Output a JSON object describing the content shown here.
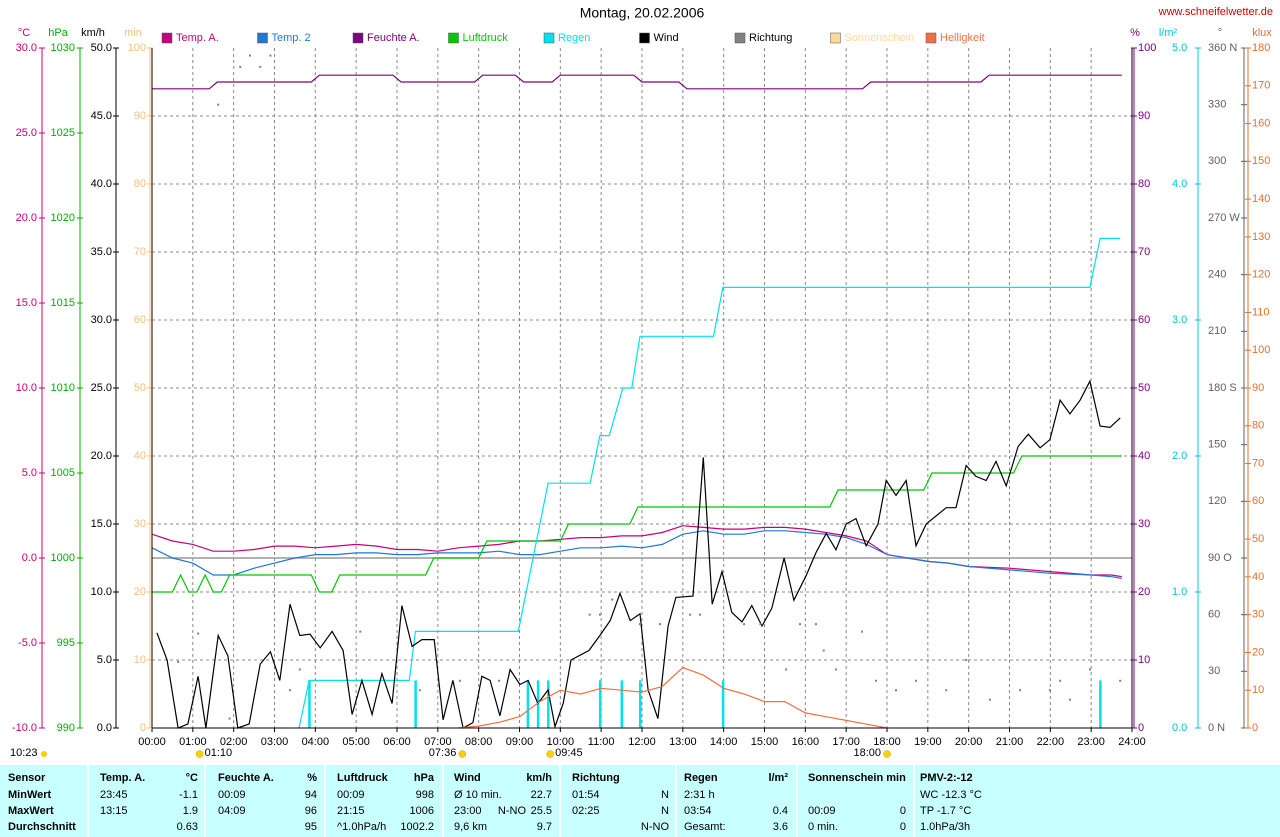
{
  "chart_data": {
    "type": "line",
    "title": "Montag, 20.02.2006",
    "source": "www.schneifelwetter.de",
    "xlim": [
      0,
      24
    ],
    "xticks": [
      {
        "value": 0,
        "label": "00:00"
      },
      {
        "value": 1,
        "label": "01:00"
      },
      {
        "value": 2,
        "label": "02:00"
      },
      {
        "value": 3,
        "label": "03:00"
      },
      {
        "value": 4,
        "label": "04:00"
      },
      {
        "value": 5,
        "label": "05:00"
      },
      {
        "value": 6,
        "label": "06:00"
      },
      {
        "value": 7,
        "label": "07:00"
      },
      {
        "value": 8,
        "label": "08:00"
      },
      {
        "value": 9,
        "label": "09:00"
      },
      {
        "value": 10,
        "label": "10:00"
      },
      {
        "value": 11,
        "label": "11:00"
      },
      {
        "value": 12,
        "label": "12:00"
      },
      {
        "value": 13,
        "label": "13:00"
      },
      {
        "value": 14,
        "label": "14:00"
      },
      {
        "value": 15,
        "label": "15:00"
      },
      {
        "value": 16,
        "label": "16:00"
      },
      {
        "value": 17,
        "label": "17:00"
      },
      {
        "value": 18,
        "label": "18:00"
      },
      {
        "value": 19,
        "label": "19:00"
      },
      {
        "value": 20,
        "label": "20:00"
      },
      {
        "value": 21,
        "label": "21:00"
      },
      {
        "value": 22,
        "label": "22:00"
      },
      {
        "value": 23,
        "label": "23:00"
      },
      {
        "value": 24,
        "label": "24:00"
      }
    ],
    "grid": true,
    "axes": [
      {
        "label": "°C",
        "color": "#c8007a",
        "lim": [
          -10,
          30
        ],
        "ticks": [
          {
            "value": -10,
            "label": "-10.0"
          },
          {
            "value": -5,
            "label": "-5.0"
          },
          {
            "value": 0,
            "label": "0.0"
          },
          {
            "value": 5,
            "label": "5.0"
          },
          {
            "value": 10,
            "label": "10.0"
          },
          {
            "value": 15,
            "label": "15.0"
          },
          {
            "value": 20,
            "label": "20.0"
          },
          {
            "value": 25,
            "label": "25.0"
          },
          {
            "value": 30,
            "label": "30.0"
          }
        ]
      },
      {
        "label": "hPa",
        "color": "#00b000",
        "lim": [
          990,
          1030
        ],
        "ticks": [
          990,
          995,
          1000,
          1005,
          1010,
          1015,
          1020,
          1025,
          1030
        ]
      },
      {
        "label": "km/h",
        "color": "#000000",
        "lim": [
          0,
          50
        ],
        "ticks": [
          {
            "value": 0,
            "label": "0.0"
          },
          {
            "value": 5,
            "label": "5.0"
          },
          {
            "value": 10,
            "label": "10.0"
          },
          {
            "value": 15,
            "label": "15.0"
          },
          {
            "value": 20,
            "label": "20.0"
          },
          {
            "value": 25,
            "label": "25.0"
          },
          {
            "value": 30,
            "label": "30.0"
          },
          {
            "value": 35,
            "label": "35.0"
          },
          {
            "value": 40,
            "label": "40.0"
          },
          {
            "value": 45,
            "label": "45.0"
          },
          {
            "value": 50,
            "label": "50.0"
          }
        ]
      },
      {
        "label": "min",
        "color": "#f0c080",
        "lim": [
          0,
          100
        ],
        "ticks": [
          0,
          10,
          20,
          30,
          40,
          50,
          60,
          70,
          80,
          90,
          100
        ]
      },
      {
        "label": "%",
        "color": "#800080",
        "lim": [
          0,
          100
        ],
        "ticks": [
          0,
          10,
          20,
          30,
          40,
          50,
          60,
          70,
          80,
          90,
          100
        ]
      },
      {
        "label": "l/m²",
        "color": "#00c8d8",
        "lim": [
          0,
          5
        ],
        "ticks": [
          {
            "value": 0,
            "label": "0.0"
          },
          {
            "value": 1,
            "label": "1.0"
          },
          {
            "value": 2,
            "label": "2.0"
          },
          {
            "value": 3,
            "label": "3.0"
          },
          {
            "value": 4,
            "label": "4.0"
          },
          {
            "value": 5,
            "label": "5.0"
          }
        ]
      },
      {
        "label": "°",
        "color": "#606060",
        "lim": [
          0,
          360
        ],
        "ticks": [
          {
            "value": 0,
            "label": "0 N"
          },
          30,
          60,
          {
            "value": 90,
            "label": "90 O"
          },
          120,
          150,
          {
            "value": 180,
            "label": "180 S"
          },
          210,
          240,
          {
            "value": 270,
            "label": "270 W"
          },
          300,
          330,
          {
            "value": 360,
            "label": "360 N"
          }
        ]
      },
      {
        "label": "klux",
        "color": "#e07030",
        "lim": [
          0,
          180
        ],
        "ticks": [
          0,
          10,
          20,
          30,
          40,
          50,
          60,
          70,
          80,
          90,
          100,
          110,
          120,
          130,
          140,
          150,
          160,
          170,
          180
        ]
      }
    ],
    "series": [
      {
        "name": "Temp. A.",
        "color": "#c8007a",
        "axis": 0,
        "style": "line",
        "x": [
          0,
          0.5,
          1,
          1.5,
          2,
          2.5,
          3,
          3.5,
          4,
          4.5,
          5,
          5.5,
          6,
          6.5,
          7,
          7.5,
          8,
          8.5,
          9,
          9.5,
          10,
          10.5,
          11,
          11.5,
          12,
          12.5,
          13,
          13.5,
          14,
          14.5,
          15,
          15.5,
          16,
          16.5,
          17,
          17.5,
          18,
          18.5,
          19,
          19.5,
          20,
          21,
          22,
          23,
          23.5,
          23.75
        ],
        "values": [
          1.4,
          1.0,
          0.8,
          0.4,
          0.4,
          0.5,
          0.7,
          0.7,
          0.6,
          0.7,
          0.8,
          0.7,
          0.5,
          0.5,
          0.4,
          0.6,
          0.7,
          0.8,
          1.0,
          1.0,
          1.1,
          1.2,
          1.2,
          1.3,
          1.3,
          1.5,
          1.9,
          1.8,
          1.7,
          1.7,
          1.8,
          1.8,
          1.7,
          1.5,
          1.3,
          1.0,
          0.2,
          0,
          -0.2,
          -0.3,
          -0.5,
          -0.6,
          -0.8,
          -1.0,
          -1.0,
          -1.1
        ]
      },
      {
        "name": "Temp. 2",
        "color": "#1e78d8",
        "axis": 0,
        "style": "line",
        "x": [
          0,
          0.5,
          1,
          1.5,
          2,
          2.5,
          3,
          3.5,
          4,
          4.5,
          5,
          5.5,
          6,
          6.5,
          7,
          7.5,
          8,
          8.5,
          9,
          9.5,
          10,
          10.5,
          11,
          11.5,
          12,
          12.5,
          13,
          13.5,
          14,
          14.5,
          15,
          15.5,
          16,
          16.5,
          17,
          17.5,
          18,
          18.5,
          19,
          19.5,
          20,
          21,
          22,
          23,
          23.5,
          23.75
        ],
        "values": [
          0.6,
          0.0,
          -0.3,
          -1.0,
          -1.0,
          -0.6,
          -0.3,
          0,
          0.2,
          0.2,
          0.3,
          0.3,
          0.2,
          0.2,
          0.3,
          0.3,
          0.3,
          0.4,
          0.2,
          0.2,
          0.4,
          0.6,
          0.6,
          0.7,
          0.6,
          0.8,
          1.4,
          1.6,
          1.4,
          1.4,
          1.6,
          1.6,
          1.5,
          1.4,
          1.2,
          0.8,
          0.2,
          0,
          -0.2,
          -0.3,
          -0.5,
          -0.7,
          -0.9,
          -1.0,
          -1.1,
          -1.2
        ]
      },
      {
        "name": "Feuchte A.",
        "color": "#800080",
        "axis": 4,
        "style": "line",
        "x": [
          0,
          1.4,
          1.6,
          3.9,
          4.1,
          5.9,
          6.1,
          7.9,
          8.1,
          8.9,
          9.1,
          9.8,
          10.0,
          11.8,
          12.0,
          12.9,
          13.1,
          17.4,
          17.6,
          20.3,
          20.5,
          23.75
        ],
        "values": [
          94,
          94,
          95,
          95,
          96,
          96,
          95,
          95,
          96,
          96,
          95,
          95,
          96,
          96,
          95,
          95,
          94,
          94,
          95,
          95,
          96,
          96
        ]
      },
      {
        "name": "Luftdruck",
        "color": "#00c800",
        "axis": 1,
        "style": "line",
        "x": [
          0,
          0.5,
          0.7,
          0.9,
          1.1,
          1.3,
          1.5,
          1.7,
          1.9,
          3.9,
          4.1,
          4.4,
          4.6,
          6.7,
          6.9,
          8.0,
          8.2,
          10.0,
          10.2,
          11.7,
          11.9,
          16.6,
          16.8,
          18.9,
          19.1,
          21.1,
          21.3,
          23.75
        ],
        "values": [
          998,
          998,
          999,
          998,
          998,
          999,
          998,
          998,
          999,
          999,
          998,
          998,
          999,
          999,
          1000,
          1000,
          1001,
          1001,
          1002,
          1002,
          1003,
          1003,
          1004,
          1004,
          1005,
          1005,
          1006,
          1006
        ]
      },
      {
        "name": "Regen",
        "color": "#00e0f0",
        "axis": 5,
        "style": "line",
        "x": [
          3.6,
          3.85,
          6.3,
          6.45,
          8.97,
          9.7,
          10.73,
          10.97,
          11.2,
          11.53,
          11.75,
          11.95,
          13.75,
          13.98,
          22.97,
          23.22,
          23.71
        ],
        "values": [
          0,
          0.35,
          0.35,
          0.71,
          0.71,
          1.8,
          1.8,
          2.15,
          2.15,
          2.5,
          2.5,
          2.88,
          2.88,
          3.24,
          3.24,
          3.6,
          3.6
        ],
        "bar_x": [
          3.85,
          6.45,
          9.2,
          9.45,
          9.7,
          10.97,
          11.5,
          11.95,
          13.98,
          23.22
        ],
        "bar_values": [
          0.35,
          0.35,
          0.35,
          0.35,
          0.35,
          0.35,
          0.35,
          0.35,
          0.35,
          0.35
        ]
      },
      {
        "name": "Wind",
        "color": "#000000",
        "axis": 2,
        "style": "line",
        "x": [
          0.12,
          0.37,
          0.64,
          0.88,
          1.13,
          1.32,
          1.62,
          1.86,
          2.1,
          2.38,
          2.65,
          2.9,
          3.13,
          3.38,
          3.62,
          3.87,
          4.12,
          4.41,
          4.68,
          4.9,
          5.14,
          5.39,
          5.63,
          5.88,
          6.12,
          6.37,
          6.61,
          6.91,
          7.13,
          7.37,
          7.62,
          7.86,
          8.08,
          8.28,
          8.52,
          8.77,
          9.01,
          9.21,
          9.45,
          9.7,
          9.87,
          10.07,
          10.26,
          10.7,
          10.97,
          11.22,
          11.46,
          11.71,
          11.95,
          12.15,
          12.39,
          12.64,
          12.83,
          13.25,
          13.5,
          13.72,
          13.96,
          14.2,
          14.45,
          14.69,
          14.94,
          15.18,
          15.48,
          15.72,
          16.02,
          16.26,
          16.51,
          16.75,
          17.0,
          17.24,
          17.49,
          17.78,
          17.98,
          18.22,
          18.47,
          18.71,
          18.96,
          19.45,
          19.69,
          19.94,
          20.18,
          20.43,
          20.67,
          20.92,
          21.21,
          21.46,
          21.75,
          21.99,
          22.24,
          22.48,
          22.73,
          22.97,
          23.22,
          23.46,
          23.71
        ],
        "values": [
          7.0,
          5.0,
          0,
          0.3,
          3.8,
          0,
          6.8,
          5.3,
          0,
          0.3,
          4.7,
          5.6,
          3.5,
          9.1,
          6.8,
          6.9,
          5.9,
          7.1,
          5.7,
          1.0,
          3.5,
          1.0,
          4.0,
          1.8,
          9.0,
          6.0,
          6.5,
          6.5,
          0.6,
          3.5,
          0,
          0.4,
          3.8,
          3.5,
          0.9,
          4.3,
          3.2,
          3.5,
          1.8,
          2.8,
          0.1,
          1.8,
          5.0,
          5.7,
          6.8,
          7.9,
          9.9,
          7.9,
          8.4,
          2.8,
          0.7,
          7.5,
          9.6,
          9.7,
          19.9,
          9.1,
          11.5,
          8.5,
          7.8,
          9.0,
          7.5,
          8.8,
          12.5,
          9.4,
          11.2,
          12.9,
          14.3,
          13.1,
          15.0,
          15.4,
          13.4,
          15.0,
          18.2,
          17.1,
          18.2,
          13.4,
          15.0,
          16.2,
          16.2,
          19.3,
          18.5,
          18.2,
          19.6,
          17.8,
          20.7,
          21.6,
          20.6,
          21.2,
          24.1,
          23.1,
          24.1,
          25.5,
          22.2,
          22.1,
          22.8
        ]
      },
      {
        "name": "Richtung",
        "color": "#808080",
        "axis": 6,
        "style": "dots",
        "x": [
          0.64,
          1.13,
          1.62,
          1.9,
          2.16,
          2.4,
          2.65,
          2.9,
          3.38,
          3.62,
          5.1,
          6.56,
          7.54,
          8.5,
          10.72,
          10.97,
          11.27,
          11.95,
          12.44,
          13.18,
          13.42,
          14.5,
          14.9,
          15.53,
          15.87,
          16.26,
          16.45,
          16.75,
          17.39,
          17.73,
          18.22,
          18.71,
          19.45,
          19.94,
          20.52,
          21.26,
          21.99,
          22.24,
          22.48,
          22.97,
          23.71
        ],
        "values": [
          35,
          50,
          330,
          5,
          350,
          356,
          350,
          356,
          20,
          31,
          51,
          20,
          25,
          25,
          60,
          60,
          68,
          55,
          55,
          60,
          60,
          55,
          55,
          31,
          55,
          55,
          41,
          31,
          51,
          25,
          20,
          25,
          20,
          36,
          15,
          20,
          20,
          25,
          15,
          31,
          25
        ]
      },
      {
        "name": "Sonnenschein",
        "color": "#ffd898",
        "axis": 3,
        "style": "line",
        "x": [],
        "values": []
      },
      {
        "name": "Helligkeit",
        "color": "#f07040",
        "axis": 7,
        "style": "line",
        "x": [
          7.5,
          8,
          8.5,
          9,
          9.5,
          10,
          10.5,
          11,
          11.5,
          12,
          12.5,
          13,
          13.5,
          14,
          14.5,
          15,
          15.5,
          16,
          16.5,
          17,
          17.5,
          18
        ],
        "values": [
          0,
          0.5,
          1.5,
          3,
          7,
          10,
          9,
          10.5,
          10,
          9.5,
          11,
          16,
          14,
          10.5,
          9,
          7,
          7,
          4,
          3,
          2,
          1,
          0
        ]
      }
    ],
    "moon_time": "10:23",
    "events": [
      "01:10",
      "07:36",
      "09:45",
      "18:00"
    ]
  },
  "table": {
    "rows": [
      [
        "Sensor",
        "Temp. A.",
        "°C",
        "Feuchte A.",
        "%",
        "Luftdruck",
        "hPa",
        "Wind",
        null,
        "km/h",
        "Richtung",
        null,
        "Regen",
        "l/m²",
        "Sonnenschein min",
        null,
        "PMV-2:-12"
      ],
      [
        "MinWert",
        "23:45",
        "-1.1",
        "00:09",
        "94",
        "00:09",
        "998",
        "Ø 10 min.",
        null,
        "22.7",
        "01:54",
        "N",
        "2:31 h",
        null,
        null,
        null,
        "WC -12.3 °C"
      ],
      [
        "MaxWert",
        "13:15",
        "1.9",
        "04:09",
        "96",
        "21:15",
        "1006",
        "23:00",
        "N-NO",
        "25.5",
        "02:25",
        "N",
        "03:54",
        "0.4",
        "00:09",
        "0",
        "TP -1.7 °C"
      ],
      [
        "Durchschnitt",
        null,
        "0.63",
        null,
        "95",
        "^1.0hPa/h",
        "1002.2",
        "9,6 km",
        null,
        "9.7",
        null,
        "N-NO",
        "Gesamt:",
        "3.6",
        "0 min.",
        "0",
        "1.0hPa/3h"
      ]
    ]
  }
}
